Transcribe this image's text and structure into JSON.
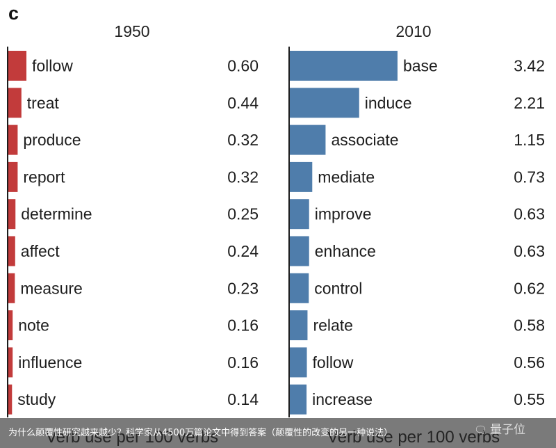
{
  "panel_letter": "c",
  "caption": "为什么颠覆性研究越来越少？科学家从4500万篇论文中得到答案（颠覆性的改变的另一种说法）",
  "watermark": {
    "text": "量子位",
    "icon": "wechat-bubble-icon"
  },
  "colors": {
    "bar_1950": "#c23b3b",
    "bar_2010": "#4f7dab",
    "axis": "#1d1d1d"
  },
  "chart_data": [
    {
      "type": "bar",
      "orientation": "horizontal",
      "title": "1950",
      "categories": [
        "follow",
        "treat",
        "produce",
        "report",
        "determine",
        "affect",
        "measure",
        "note",
        "influence",
        "study"
      ],
      "values": [
        0.6,
        0.44,
        0.32,
        0.32,
        0.25,
        0.24,
        0.23,
        0.16,
        0.16,
        0.14
      ],
      "value_labels": [
        "0.60",
        "0.44",
        "0.32",
        "0.32",
        "0.25",
        "0.24",
        "0.23",
        "0.16",
        "0.16",
        "0.14"
      ],
      "xlabel": "Verb use per 100 verbs",
      "grid": false
    },
    {
      "type": "bar",
      "orientation": "horizontal",
      "title": "2010",
      "categories": [
        "base",
        "induce",
        "associate",
        "mediate",
        "improve",
        "enhance",
        "control",
        "relate",
        "follow",
        "increase"
      ],
      "values": [
        3.42,
        2.21,
        1.15,
        0.73,
        0.63,
        0.63,
        0.62,
        0.58,
        0.56,
        0.55
      ],
      "value_labels": [
        "3.42",
        "2.21",
        "1.15",
        "0.73",
        "0.63",
        "0.63",
        "0.62",
        "0.58",
        "0.56",
        "0.55"
      ],
      "xlabel": "Verb use per 100 verbs",
      "grid": false
    }
  ]
}
